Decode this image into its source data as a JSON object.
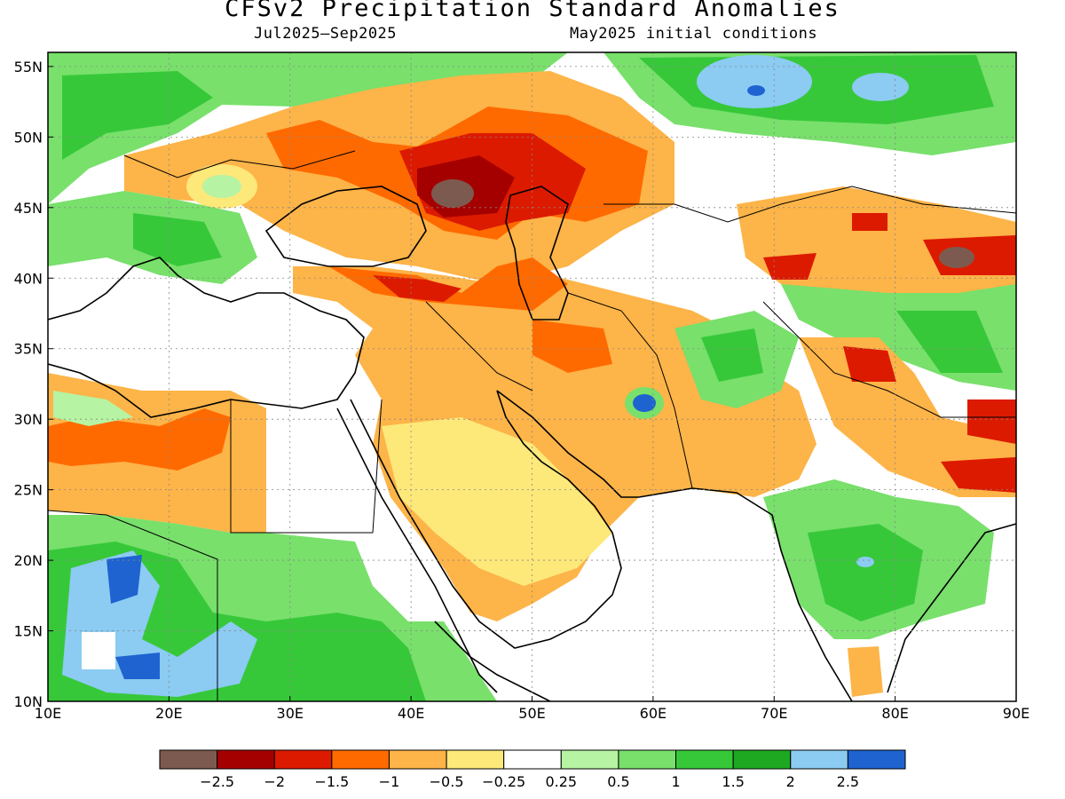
{
  "title": "CFSv2 Precipitation Standard Anomalies",
  "subtitle_period": "Jul2025–Sep2025",
  "subtitle_ic": "May2025 initial conditions",
  "map": {
    "lon_range": [
      10,
      90
    ],
    "lat_range": [
      10,
      56
    ],
    "x_ticks": [
      "10E",
      "20E",
      "30E",
      "40E",
      "50E",
      "60E",
      "70E",
      "80E",
      "90E"
    ],
    "x_tick_values": [
      10,
      20,
      30,
      40,
      50,
      60,
      70,
      80,
      90
    ],
    "y_ticks": [
      "10N",
      "15N",
      "20N",
      "25N",
      "30N",
      "35N",
      "40N",
      "45N",
      "50N",
      "55N"
    ],
    "y_tick_values": [
      10,
      15,
      20,
      25,
      30,
      35,
      40,
      45,
      50,
      55
    ],
    "grid": "dotted"
  },
  "colorbar": {
    "colors": [
      "#7d5a4f",
      "#a50000",
      "#dc1a00",
      "#ff6a00",
      "#fdb448",
      "#fde87a",
      "#ffffff",
      "#b6f3a2",
      "#78e06b",
      "#37c83a",
      "#1ea821",
      "#8ccbf2",
      "#1e63d0"
    ],
    "labels": [
      "−2.5",
      "−2",
      "−1.5",
      "−1",
      "−0.5",
      "−0.25",
      "0.25",
      "0.5",
      "1",
      "1.5",
      "2",
      "2.5"
    ]
  },
  "colors": {
    "land_outline": "#000000",
    "water": "#ffffff"
  }
}
